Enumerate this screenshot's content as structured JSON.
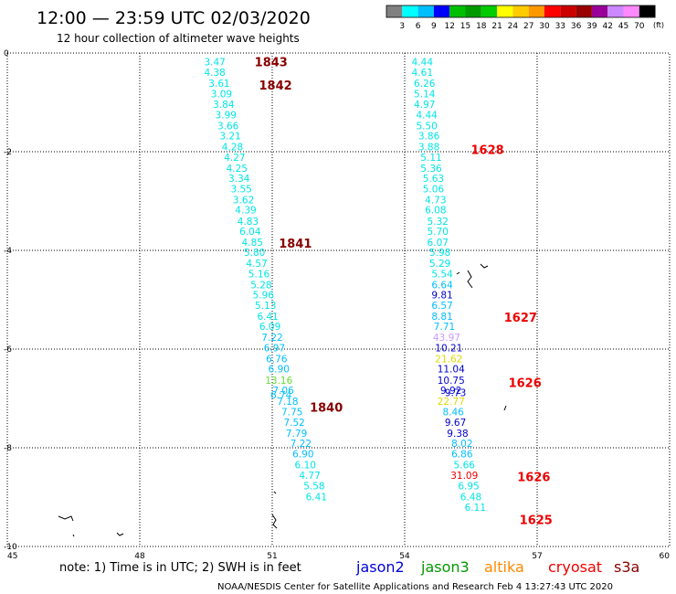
{
  "header": {
    "title": "12:00 — 23:59 UTC 02/03/2020",
    "subtitle": "12 hour collection of altimeter wave heights"
  },
  "colorbar": {
    "labels": [
      "3",
      "6",
      "9",
      "12",
      "15",
      "18",
      "21",
      "24",
      "27",
      "30",
      "33",
      "36",
      "39",
      "42",
      "45",
      "70"
    ],
    "unit": "(ft)",
    "colors": [
      "#808080",
      "#00ffff",
      "#00bfff",
      "#0000ff",
      "#00bf00",
      "#009900",
      "#00cc00",
      "#ffff00",
      "#ffcc00",
      "#ff9900",
      "#ff0000",
      "#cc0000",
      "#990000",
      "#990099",
      "#cc88ff",
      "#ff88ff",
      "#000000"
    ]
  },
  "footer": {
    "note": "note:  1) Time is in UTC;  2) SWH is in feet",
    "credit": "NOAA/NESDIS Center for Satellite Applications and Research    Feb  4 13:27:43 UTC 2020",
    "satellites": [
      {
        "name": "jason2",
        "color": "#0000dd"
      },
      {
        "name": "jason3",
        "color": "#009900"
      },
      {
        "name": "altika",
        "color": "#ff8800"
      },
      {
        "name": "cryosat",
        "color": "#ee0000"
      },
      {
        "name": "s3a",
        "color": "#880000"
      }
    ]
  },
  "chart_data": {
    "type": "scatter",
    "xlim": [
      45,
      60
    ],
    "ylim": [
      -10,
      0
    ],
    "x_ticks": [
      "45",
      "48",
      "51",
      "54",
      "57",
      "60"
    ],
    "y_ticks": [
      "0",
      "-2",
      "-4",
      "-6",
      "-8",
      "-10"
    ],
    "grid": true,
    "series": [
      {
        "track": "left",
        "points": [
          {
            "x": 49.7,
            "y": -0.18,
            "v": "3.47",
            "c": "#00e5e5"
          },
          {
            "x": 49.7,
            "y": -0.39,
            "v": "4.38",
            "c": "#00e5e5"
          },
          {
            "x": 49.8,
            "y": -0.61,
            "v": "3.61",
            "c": "#00e5e5"
          },
          {
            "x": 49.85,
            "y": -0.82,
            "v": "3.09",
            "c": "#00e5e5"
          },
          {
            "x": 49.9,
            "y": -1.04,
            "v": "3.84",
            "c": "#00e5e5"
          },
          {
            "x": 49.95,
            "y": -1.25,
            "v": "3.99",
            "c": "#00e5e5"
          },
          {
            "x": 50.0,
            "y": -1.47,
            "v": "3.66",
            "c": "#00e5e5"
          },
          {
            "x": 50.05,
            "y": -1.68,
            "v": "3.21",
            "c": "#00e5e5"
          },
          {
            "x": 50.1,
            "y": -1.9,
            "v": "4.28",
            "c": "#00e5e5"
          },
          {
            "x": 50.15,
            "y": -2.11,
            "v": "4.27",
            "c": "#00e5e5"
          },
          {
            "x": 50.2,
            "y": -2.33,
            "v": "4.25",
            "c": "#00e5e5"
          },
          {
            "x": 50.25,
            "y": -2.54,
            "v": "3.34",
            "c": "#00e5e5"
          },
          {
            "x": 50.3,
            "y": -2.75,
            "v": "3.55",
            "c": "#00e5e5"
          },
          {
            "x": 50.35,
            "y": -2.97,
            "v": "3.62",
            "c": "#00e5e5"
          },
          {
            "x": 50.4,
            "y": -3.18,
            "v": "4.39",
            "c": "#00e5e5"
          },
          {
            "x": 50.45,
            "y": -3.41,
            "v": "4.83",
            "c": "#00e5e5"
          },
          {
            "x": 50.5,
            "y": -3.61,
            "v": "6.04",
            "c": "#00e5e5"
          },
          {
            "x": 50.55,
            "y": -3.83,
            "v": "4.85",
            "c": "#00e5e5"
          },
          {
            "x": 50.6,
            "y": -4.04,
            "v": "5.80",
            "c": "#00e5e5"
          },
          {
            "x": 50.65,
            "y": -4.26,
            "v": "4.57",
            "c": "#00e5e5"
          },
          {
            "x": 50.7,
            "y": -4.47,
            "v": "5.16",
            "c": "#00e5e5"
          },
          {
            "x": 50.75,
            "y": -4.69,
            "v": "5.28",
            "c": "#00e5e5"
          },
          {
            "x": 50.8,
            "y": -4.9,
            "v": "5.96",
            "c": "#00e5e5"
          },
          {
            "x": 50.85,
            "y": -5.11,
            "v": "5.13",
            "c": "#00e5e5"
          },
          {
            "x": 50.9,
            "y": -5.33,
            "v": "6.41",
            "c": "#00e5e5"
          },
          {
            "x": 50.95,
            "y": -5.54,
            "v": "6.09",
            "c": "#00e5e5"
          },
          {
            "x": 51.0,
            "y": -5.76,
            "v": "7.22",
            "c": "#00bfff"
          },
          {
            "x": 51.05,
            "y": -5.97,
            "v": "6.97",
            "c": "#00bfff"
          },
          {
            "x": 51.1,
            "y": -6.19,
            "v": "6.76",
            "c": "#00bfff"
          },
          {
            "x": 51.15,
            "y": -6.4,
            "v": "6.90",
            "c": "#00bfff"
          },
          {
            "x": 51.15,
            "y": -6.63,
            "v": "13.16",
            "c": "#66dd33"
          },
          {
            "x": 51.25,
            "y": -6.83,
            "v": "7.06",
            "c": "#00bfff"
          },
          {
            "x": 51.2,
            "y": -6.93,
            "v": "6.74",
            "c": "#00bfff"
          },
          {
            "x": 51.35,
            "y": -7.06,
            "v": "7.18",
            "c": "#00bfff"
          },
          {
            "x": 51.45,
            "y": -7.27,
            "v": "7.75",
            "c": "#00bfff"
          },
          {
            "x": 51.5,
            "y": -7.48,
            "v": "7.52",
            "c": "#00bfff"
          },
          {
            "x": 51.55,
            "y": -7.7,
            "v": "7.79",
            "c": "#00bfff"
          },
          {
            "x": 51.65,
            "y": -7.91,
            "v": "7.22",
            "c": "#00bfff"
          },
          {
            "x": 51.7,
            "y": -8.12,
            "v": "6.90",
            "c": "#00bfff"
          },
          {
            "x": 51.75,
            "y": -8.34,
            "v": "6.10",
            "c": "#00e5e5"
          },
          {
            "x": 51.85,
            "y": -8.56,
            "v": "4.77",
            "c": "#00e5e5"
          },
          {
            "x": 51.95,
            "y": -8.77,
            "v": "5.58",
            "c": "#00e5e5"
          },
          {
            "x": 52.0,
            "y": -8.99,
            "v": "6.41",
            "c": "#00e5e5"
          }
        ]
      },
      {
        "track": "right",
        "points": [
          {
            "x": 54.4,
            "y": -0.18,
            "v": "4.44",
            "c": "#00e5e5"
          },
          {
            "x": 54.4,
            "y": -0.39,
            "v": "4.61",
            "c": "#00e5e5"
          },
          {
            "x": 54.45,
            "y": -0.61,
            "v": "6.26",
            "c": "#00e5e5"
          },
          {
            "x": 54.45,
            "y": -0.82,
            "v": "5.14",
            "c": "#00e5e5"
          },
          {
            "x": 54.45,
            "y": -1.04,
            "v": "4.97",
            "c": "#00e5e5"
          },
          {
            "x": 54.5,
            "y": -1.25,
            "v": "4.44",
            "c": "#00e5e5"
          },
          {
            "x": 54.5,
            "y": -1.47,
            "v": "5.50",
            "c": "#00e5e5"
          },
          {
            "x": 54.55,
            "y": -1.68,
            "v": "3.86",
            "c": "#00e5e5"
          },
          {
            "x": 54.55,
            "y": -1.9,
            "v": "3.88",
            "c": "#00e5e5"
          },
          {
            "x": 54.6,
            "y": -2.11,
            "v": "5.11",
            "c": "#00e5e5"
          },
          {
            "x": 54.6,
            "y": -2.33,
            "v": "5.36",
            "c": "#00e5e5"
          },
          {
            "x": 54.65,
            "y": -2.54,
            "v": "5.63",
            "c": "#00e5e5"
          },
          {
            "x": 54.65,
            "y": -2.75,
            "v": "5.06",
            "c": "#00e5e5"
          },
          {
            "x": 54.7,
            "y": -2.97,
            "v": "4.73",
            "c": "#00e5e5"
          },
          {
            "x": 54.7,
            "y": -3.18,
            "v": "6.08",
            "c": "#00e5e5"
          },
          {
            "x": 54.75,
            "y": -3.41,
            "v": "5.32",
            "c": "#00e5e5"
          },
          {
            "x": 54.75,
            "y": -3.61,
            "v": "5.70",
            "c": "#00e5e5"
          },
          {
            "x": 54.75,
            "y": -3.83,
            "v": "6.07",
            "c": "#00e5e5"
          },
          {
            "x": 54.8,
            "y": -4.04,
            "v": "5.98",
            "c": "#00e5e5"
          },
          {
            "x": 54.8,
            "y": -4.26,
            "v": "5.29",
            "c": "#00e5e5"
          },
          {
            "x": 54.85,
            "y": -4.47,
            "v": "5.54",
            "c": "#00e5e5"
          },
          {
            "x": 54.85,
            "y": -4.69,
            "v": "6.64",
            "c": "#00bfff"
          },
          {
            "x": 54.85,
            "y": -4.9,
            "v": "9.81",
            "c": "#0000cc"
          },
          {
            "x": 54.85,
            "y": -5.11,
            "v": "6.57",
            "c": "#00bfff"
          },
          {
            "x": 54.85,
            "y": -5.33,
            "v": "8.81",
            "c": "#00bfff"
          },
          {
            "x": 54.9,
            "y": -5.54,
            "v": "7.71",
            "c": "#00bfff"
          },
          {
            "x": 54.95,
            "y": -5.76,
            "v": "43.97",
            "c": "#cc99ff"
          },
          {
            "x": 55.0,
            "y": -5.97,
            "v": "10.21",
            "c": "#0000cc"
          },
          {
            "x": 55.0,
            "y": -6.19,
            "v": "21.62",
            "c": "#e5d800"
          },
          {
            "x": 55.05,
            "y": -6.4,
            "v": "11.04",
            "c": "#0000cc"
          },
          {
            "x": 55.05,
            "y": -6.63,
            "v": "10.75",
            "c": "#0000cc"
          },
          {
            "x": 55.05,
            "y": -6.83,
            "v": "9.92",
            "c": "#0000cc"
          },
          {
            "x": 55.15,
            "y": -6.88,
            "v": "9.73",
            "c": "#0000cc"
          },
          {
            "x": 55.05,
            "y": -7.06,
            "v": "22.77",
            "c": "#e5d800"
          },
          {
            "x": 55.1,
            "y": -7.27,
            "v": "8.46",
            "c": "#00bfff"
          },
          {
            "x": 55.15,
            "y": -7.48,
            "v": "9.67",
            "c": "#0000cc"
          },
          {
            "x": 55.2,
            "y": -7.7,
            "v": "9.38",
            "c": "#0000cc"
          },
          {
            "x": 55.3,
            "y": -7.91,
            "v": "8.02",
            "c": "#00bfff"
          },
          {
            "x": 55.3,
            "y": -8.12,
            "v": "6.86",
            "c": "#00bfff"
          },
          {
            "x": 55.35,
            "y": -8.34,
            "v": "5.66",
            "c": "#00e5e5"
          },
          {
            "x": 55.35,
            "y": -8.56,
            "v": "31.09",
            "c": "#ee0000"
          },
          {
            "x": 55.45,
            "y": -8.77,
            "v": "6.95",
            "c": "#00e5e5"
          },
          {
            "x": 55.5,
            "y": -8.99,
            "v": "6.48",
            "c": "#00e5e5"
          },
          {
            "x": 55.6,
            "y": -9.2,
            "v": "6.11",
            "c": "#00e5e5"
          }
        ]
      }
    ],
    "time_labels": [
      {
        "x": 50.6,
        "y": -0.18,
        "v": "1843",
        "c": "#880000"
      },
      {
        "x": 50.7,
        "y": -0.65,
        "v": "1842",
        "c": "#880000"
      },
      {
        "x": 51.15,
        "y": -3.85,
        "v": "1841",
        "c": "#880000"
      },
      {
        "x": 51.85,
        "y": -7.18,
        "v": "1840",
        "c": "#880000"
      },
      {
        "x": 55.5,
        "y": -1.95,
        "v": "1628",
        "c": "#ee0000"
      },
      {
        "x": 56.25,
        "y": -5.35,
        "v": "1627",
        "c": "#ee0000"
      },
      {
        "x": 56.35,
        "y": -6.68,
        "v": "1626",
        "c": "#ee0000"
      },
      {
        "x": 56.55,
        "y": -8.58,
        "v": "1626",
        "c": "#ee0000"
      },
      {
        "x": 56.6,
        "y": -9.45,
        "v": "1625",
        "c": "#ee0000"
      }
    ]
  }
}
